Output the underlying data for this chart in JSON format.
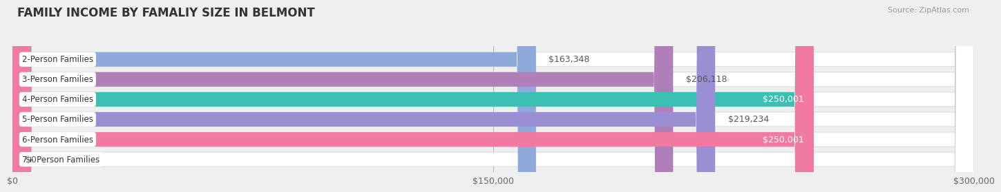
{
  "title": "FAMILY INCOME BY FAMALIY SIZE IN BELMONT",
  "source": "Source: ZipAtlas.com",
  "categories": [
    "2-Person Families",
    "3-Person Families",
    "4-Person Families",
    "5-Person Families",
    "6-Person Families",
    "7+ Person Families"
  ],
  "values": [
    163348,
    206118,
    250001,
    219234,
    250001,
    0
  ],
  "bar_colors": [
    "#8eaadb",
    "#b07eb8",
    "#3bbfb2",
    "#9b8fd4",
    "#f07aa0",
    "#f5c99a"
  ],
  "value_labels": [
    "$163,348",
    "$206,118",
    "$250,001",
    "$219,234",
    "$250,001",
    "$0"
  ],
  "value_inside": [
    false,
    false,
    true,
    false,
    true,
    false
  ],
  "xmax": 300000,
  "xticks": [
    0,
    150000,
    300000
  ],
  "xticklabels": [
    "$0",
    "$150,000",
    "$300,000"
  ],
  "background_color": "#efefef",
  "title_fontsize": 12,
  "source_fontsize": 8,
  "label_fontsize": 8.5,
  "value_fontsize": 9
}
